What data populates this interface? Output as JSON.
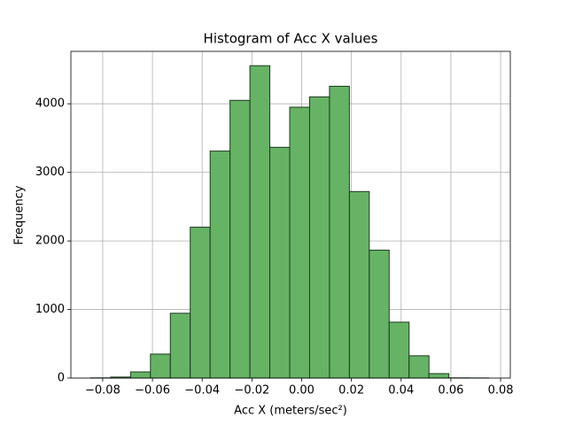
{
  "chart_data": {
    "type": "histogram",
    "title": "Histogram of Acc X values",
    "x_label": "Acc X (meters/sec²)",
    "y_label": "Frequency",
    "bins": [
      -0.0848,
      -0.0768,
      -0.0688,
      -0.0608,
      -0.0528,
      -0.0448,
      -0.0368,
      -0.0288,
      -0.0208,
      -0.0128,
      -0.0048,
      0.0032,
      0.0112,
      0.0192,
      0.0272,
      0.0352,
      0.0432,
      0.0512,
      0.0592,
      0.0672,
      0.0752
    ],
    "values": [
      3,
      15,
      90,
      350,
      945,
      2200,
      3310,
      4050,
      4555,
      3365,
      3950,
      4100,
      4255,
      2720,
      1865,
      815,
      325,
      65,
      3,
      2
    ],
    "color": "#66b366",
    "edge_color": "#1e3a1e",
    "xlim": [
      -0.0928,
      0.0839
    ],
    "ylim": [
      0,
      4764
    ],
    "xticks": [
      {
        "value": -0.08,
        "label": "−0.08"
      },
      {
        "value": -0.06,
        "label": "−0.06"
      },
      {
        "value": -0.04,
        "label": "−0.04"
      },
      {
        "value": -0.02,
        "label": "−0.02"
      },
      {
        "value": 0,
        "label": "0.00"
      },
      {
        "value": 0.02,
        "label": "0.02"
      },
      {
        "value": 0.04,
        "label": "0.04"
      },
      {
        "value": 0.06,
        "label": "0.06"
      },
      {
        "value": 0.08,
        "label": "0.08"
      }
    ],
    "yticks": [
      0,
      1000,
      2000,
      3000,
      4000
    ],
    "grid": true
  }
}
